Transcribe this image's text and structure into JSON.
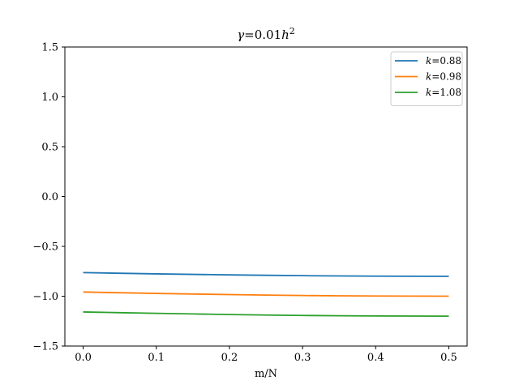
{
  "chart_data": {
    "type": "line",
    "title_parts": {
      "gamma": "γ",
      "mid": "=0.01",
      "h": "h",
      "exp": "2"
    },
    "xlabel": "m/N",
    "ylabel": "",
    "xlim": [
      -0.025,
      0.525
    ],
    "ylim": [
      -1.5,
      1.5
    ],
    "xticks": [
      "0.0",
      "0.1",
      "0.2",
      "0.3",
      "0.4",
      "0.5"
    ],
    "xtick_values": [
      0.0,
      0.1,
      0.2,
      0.3,
      0.4,
      0.5
    ],
    "yticks": [
      "−1.5",
      "−1.0",
      "−0.5",
      "0.0",
      "0.5",
      "1.0",
      "1.5"
    ],
    "ytick_values": [
      -1.5,
      -1.0,
      -0.5,
      0.0,
      0.5,
      1.0,
      1.5
    ],
    "grid": false,
    "legend_position": "top-right",
    "x": [
      0.0,
      0.05,
      0.1,
      0.15,
      0.2,
      0.25,
      0.3,
      0.35,
      0.4,
      0.45,
      0.5
    ],
    "series": [
      {
        "name_k": "k",
        "name_val": "=0.88",
        "color": "#1f77b4",
        "values": [
          -0.763,
          -0.77,
          -0.776,
          -0.781,
          -0.786,
          -0.79,
          -0.794,
          -0.797,
          -0.799,
          -0.8,
          -0.801
        ]
      },
      {
        "name_k": "k",
        "name_val": "=0.98",
        "color": "#ff7f0e",
        "values": [
          -0.958,
          -0.965,
          -0.972,
          -0.978,
          -0.984,
          -0.989,
          -0.993,
          -0.996,
          -0.998,
          -0.999,
          -1.0
        ]
      },
      {
        "name_k": "k",
        "name_val": "=1.08",
        "color": "#2ca02c",
        "values": [
          -1.158,
          -1.165,
          -1.172,
          -1.178,
          -1.184,
          -1.189,
          -1.193,
          -1.196,
          -1.198,
          -1.199,
          -1.2
        ]
      }
    ]
  }
}
